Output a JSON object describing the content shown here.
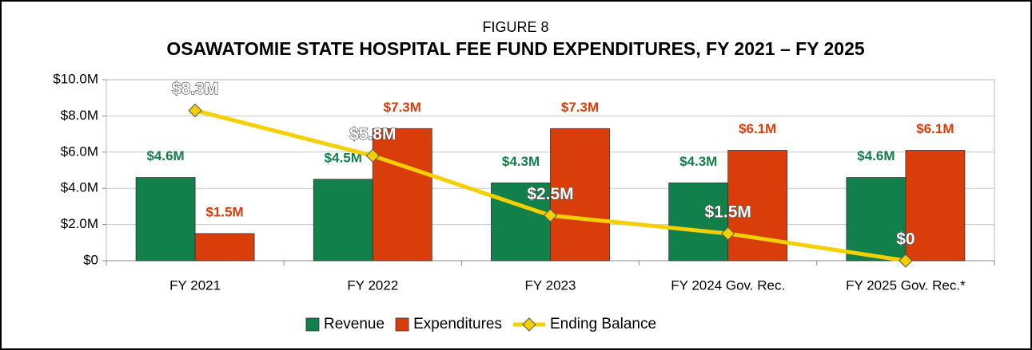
{
  "chart_data": {
    "type": "bar",
    "subtitle": "FIGURE 8",
    "title": "OSAWATOMIE STATE HOSPITAL FEE FUND EXPENDITURES, FY 2021 – FY 2025",
    "categories": [
      "FY 2021",
      "FY 2022",
      "FY 2023",
      "FY 2024 Gov. Rec.",
      "FY 2025 Gov. Rec.*"
    ],
    "series": [
      {
        "name": "Revenue",
        "type": "bar",
        "color": "#11804a",
        "values": [
          4.6,
          4.5,
          4.3,
          4.3,
          4.6
        ],
        "value_labels": [
          "$4.6M",
          "$4.5M",
          "$4.3M",
          "$4.3M",
          "$4.6M"
        ]
      },
      {
        "name": "Expenditures",
        "type": "bar",
        "color": "#d93e0a",
        "values": [
          1.5,
          7.3,
          7.3,
          6.1,
          6.1
        ],
        "value_labels": [
          "$1.5M",
          "$7.3M",
          "$7.3M",
          "$6.1M",
          "$6.1M"
        ]
      },
      {
        "name": "Ending Balance",
        "type": "line",
        "color": "#f5d000",
        "values": [
          8.3,
          5.8,
          2.5,
          1.5,
          0
        ],
        "value_labels": [
          "$8.3M",
          "$5.8M",
          "$2.5M",
          "$1.5M",
          "$0"
        ]
      }
    ],
    "ylim": [
      0,
      10
    ],
    "yticks": [
      {
        "value": 0,
        "label": "$0"
      },
      {
        "value": 2,
        "label": "$2.0M"
      },
      {
        "value": 4,
        "label": "$4.0M"
      },
      {
        "value": 6,
        "label": "$6.0M"
      },
      {
        "value": 8,
        "label": "$8.0M"
      },
      {
        "value": 10,
        "label": "$10.0M"
      }
    ],
    "grid": true,
    "legend": "bottom"
  }
}
